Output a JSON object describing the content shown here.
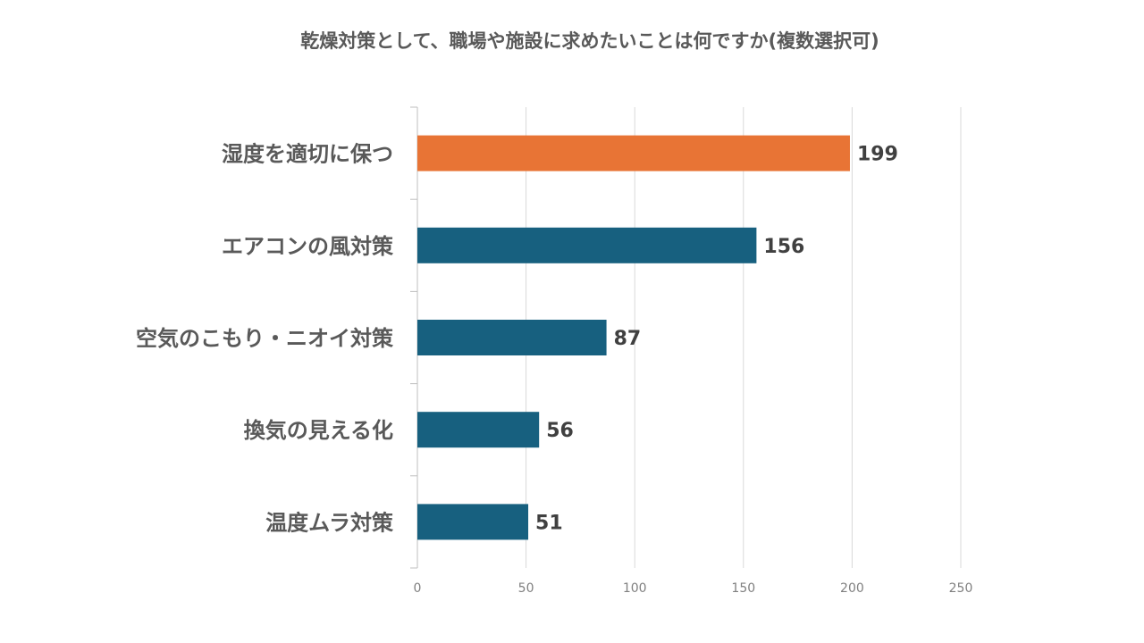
{
  "chart_data": {
    "type": "bar",
    "orientation": "horizontal",
    "title": "乾燥対策として、職場や施設に求めたいことは何ですか(複数選択可)",
    "categories": [
      "湿度を適切に保つ",
      "エアコンの風対策",
      "空気のこもり・ニオイ対策",
      "換気の見える化",
      "温度ムラ対策"
    ],
    "values": [
      199,
      156,
      87,
      56,
      51
    ],
    "x_ticks": [
      "0",
      "50",
      "100",
      "150",
      "200",
      "250"
    ],
    "xlim": [
      0,
      250
    ],
    "xlabel": "",
    "ylabel": "",
    "grid": true,
    "legend": "none",
    "highlight_index": 0,
    "colors": {
      "highlight": "#E87435",
      "default": "#17607F",
      "grid": "#D9D9D9",
      "axis": "#BFBFBF"
    }
  }
}
